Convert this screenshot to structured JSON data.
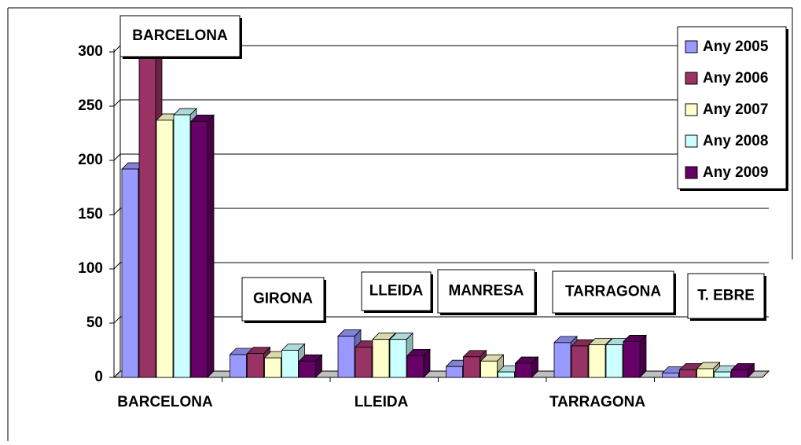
{
  "chart_data": {
    "type": "bar3d",
    "categories": [
      "BARCELONA",
      null,
      "LLEIDA",
      null,
      "TARRAGONA",
      null
    ],
    "annotations": [
      "BARCELONA",
      "GIRONA",
      "LLEIDA",
      "MANRESA",
      "TARRAGONA",
      "T. EBRE"
    ],
    "series": [
      {
        "name": "Any 2005",
        "color": "#9999ff",
        "values": [
          192,
          21,
          38,
          10,
          32,
          4
        ]
      },
      {
        "name": "Any 2006",
        "color": "#993366",
        "values": [
          310,
          22,
          28,
          19,
          29,
          7
        ]
      },
      {
        "name": "Any 2007",
        "color": "#ffffcc",
        "values": [
          237,
          18,
          35,
          15,
          30,
          8
        ]
      },
      {
        "name": "Any 2008",
        "color": "#ccffff",
        "values": [
          242,
          25,
          35,
          5,
          30,
          5
        ]
      },
      {
        "name": "Any 2009",
        "color": "#660066",
        "values": [
          236,
          15,
          20,
          13,
          33,
          7
        ]
      }
    ],
    "ylim": [
      0,
      300
    ],
    "yticks": [
      0,
      50,
      100,
      150,
      200,
      250,
      300
    ],
    "grid": true,
    "legend": "top-right"
  }
}
